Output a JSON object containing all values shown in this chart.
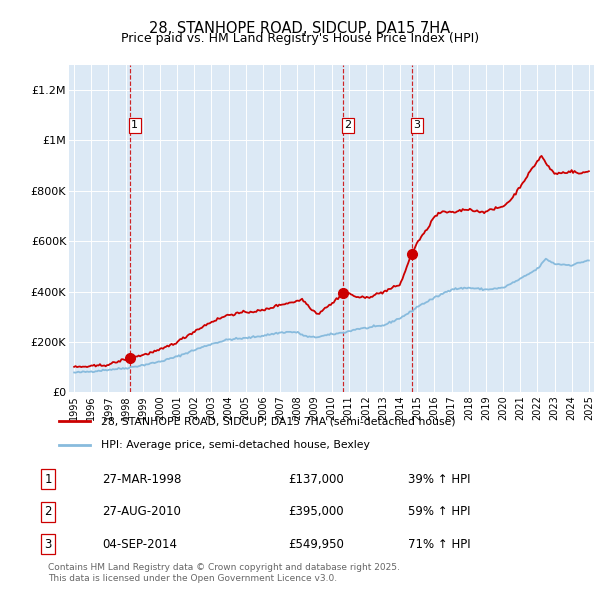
{
  "title": "28, STANHOPE ROAD, SIDCUP, DA15 7HA",
  "subtitle": "Price paid vs. HM Land Registry's House Price Index (HPI)",
  "plot_bg_color": "#dce9f5",
  "red_line_color": "#cc0000",
  "blue_line_color": "#88bbdd",
  "dashed_line_color": "#cc0000",
  "sale_marker_color": "#cc0000",
  "ylim": [
    0,
    1300000
  ],
  "yticks": [
    0,
    200000,
    400000,
    600000,
    800000,
    1000000,
    1200000
  ],
  "ytick_labels": [
    "£0",
    "£200K",
    "£400K",
    "£600K",
    "£800K",
    "£1M",
    "£1.2M"
  ],
  "x_start_year": 1995,
  "x_end_year": 2025,
  "sale_years": [
    1998.23,
    2010.65,
    2014.68
  ],
  "sale_prices": [
    137000,
    395000,
    549950
  ],
  "sale_labels": [
    "1",
    "2",
    "3"
  ],
  "legend_red_label": "28, STANHOPE ROAD, SIDCUP, DA15 7HA (semi-detached house)",
  "legend_blue_label": "HPI: Average price, semi-detached house, Bexley",
  "table_rows": [
    {
      "num": "1",
      "date": "27-MAR-1998",
      "price": "£137,000",
      "hpi": "39% ↑ HPI"
    },
    {
      "num": "2",
      "date": "27-AUG-2010",
      "price": "£395,000",
      "hpi": "59% ↑ HPI"
    },
    {
      "num": "3",
      "date": "04-SEP-2014",
      "price": "£549,950",
      "hpi": "71% ↑ HPI"
    }
  ],
  "footer_text": "Contains HM Land Registry data © Crown copyright and database right 2025.\nThis data is licensed under the Open Government Licence v3.0.",
  "hpi_key_points": [
    [
      1995.0,
      78000
    ],
    [
      1996.0,
      83000
    ],
    [
      1997.0,
      90000
    ],
    [
      1998.0,
      96000
    ],
    [
      1999.0,
      108000
    ],
    [
      2000.0,
      122000
    ],
    [
      2001.0,
      142000
    ],
    [
      2002.0,
      168000
    ],
    [
      2003.0,
      192000
    ],
    [
      2004.0,
      210000
    ],
    [
      2005.0,
      215000
    ],
    [
      2006.0,
      225000
    ],
    [
      2007.0,
      237000
    ],
    [
      2007.5,
      240000
    ],
    [
      2008.0,
      238000
    ],
    [
      2008.5,
      222000
    ],
    [
      2009.0,
      218000
    ],
    [
      2009.5,
      224000
    ],
    [
      2010.0,
      230000
    ],
    [
      2010.65,
      237000
    ],
    [
      2011.0,
      242000
    ],
    [
      2011.5,
      252000
    ],
    [
      2012.0,
      255000
    ],
    [
      2013.0,
      265000
    ],
    [
      2014.0,
      295000
    ],
    [
      2014.68,
      322000
    ],
    [
      2015.0,
      340000
    ],
    [
      2016.0,
      375000
    ],
    [
      2017.0,
      410000
    ],
    [
      2018.0,
      415000
    ],
    [
      2019.0,
      408000
    ],
    [
      2020.0,
      415000
    ],
    [
      2021.0,
      450000
    ],
    [
      2022.0,
      490000
    ],
    [
      2022.5,
      530000
    ],
    [
      2023.0,
      510000
    ],
    [
      2024.0,
      505000
    ],
    [
      2025.0,
      525000
    ]
  ],
  "prop_key_points": [
    [
      1995.0,
      100000
    ],
    [
      1996.0,
      103000
    ],
    [
      1997.0,
      110000
    ],
    [
      1998.23,
      137000
    ],
    [
      1999.0,
      148000
    ],
    [
      2000.0,
      168000
    ],
    [
      2001.0,
      200000
    ],
    [
      2002.0,
      242000
    ],
    [
      2003.0,
      280000
    ],
    [
      2004.0,
      308000
    ],
    [
      2005.0,
      318000
    ],
    [
      2006.0,
      325000
    ],
    [
      2007.0,
      348000
    ],
    [
      2008.0,
      362000
    ],
    [
      2008.3,
      370000
    ],
    [
      2008.7,
      340000
    ],
    [
      2009.2,
      310000
    ],
    [
      2009.6,
      335000
    ],
    [
      2010.0,
      350000
    ],
    [
      2010.65,
      395000
    ],
    [
      2011.0,
      392000
    ],
    [
      2011.5,
      378000
    ],
    [
      2012.0,
      375000
    ],
    [
      2013.0,
      398000
    ],
    [
      2014.0,
      428000
    ],
    [
      2014.68,
      549950
    ],
    [
      2015.0,
      595000
    ],
    [
      2015.5,
      640000
    ],
    [
      2016.0,
      698000
    ],
    [
      2016.5,
      718000
    ],
    [
      2017.0,
      712000
    ],
    [
      2017.5,
      722000
    ],
    [
      2018.0,
      728000
    ],
    [
      2018.5,
      718000
    ],
    [
      2019.0,
      718000
    ],
    [
      2019.5,
      728000
    ],
    [
      2020.0,
      738000
    ],
    [
      2020.5,
      768000
    ],
    [
      2021.0,
      818000
    ],
    [
      2021.5,
      868000
    ],
    [
      2022.0,
      918000
    ],
    [
      2022.25,
      940000
    ],
    [
      2022.5,
      908000
    ],
    [
      2023.0,
      868000
    ],
    [
      2023.5,
      872000
    ],
    [
      2024.0,
      878000
    ],
    [
      2024.5,
      868000
    ],
    [
      2025.0,
      878000
    ]
  ]
}
